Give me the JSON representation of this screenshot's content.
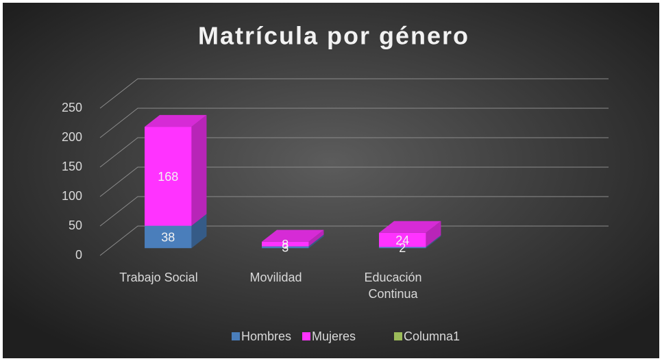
{
  "chart_data": {
    "type": "bar3d_stacked",
    "title": "Matrícula por género",
    "categories": [
      "Trabajo Social",
      "Movilidad",
      "Educación Continua"
    ],
    "series": [
      {
        "name": "Hombres",
        "color": "#4a7ebb",
        "values": [
          38,
          3,
          2
        ]
      },
      {
        "name": "Mujeres",
        "color": "#ff33ff",
        "values": [
          168,
          8,
          24
        ]
      },
      {
        "name": "Columna1",
        "color": "#9bbb59",
        "values": [
          null,
          null,
          null
        ]
      }
    ],
    "ylim": [
      0,
      250
    ],
    "yticks": [
      0,
      50,
      100,
      150,
      200,
      250
    ],
    "grid": true,
    "legend": "bottom"
  }
}
